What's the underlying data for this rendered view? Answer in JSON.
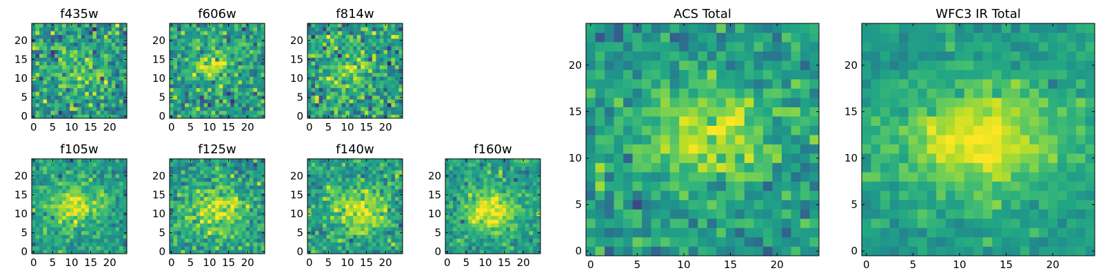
{
  "chart_data": [
    {
      "type": "heatmap",
      "title": "f435w",
      "colormap": "viridis",
      "xlim": [
        0,
        25
      ],
      "ylim": [
        0,
        25
      ],
      "xticks": [
        "0",
        "5",
        "10",
        "15",
        "20"
      ],
      "yticks": [
        "0",
        "5",
        "10",
        "15",
        "20"
      ],
      "blob": {
        "cx": 12,
        "cy": 12,
        "sx": 4.5,
        "sy": 3.5,
        "amp": 0.22
      },
      "noise": 0.45,
      "seed": 11
    },
    {
      "type": "heatmap",
      "title": "f606w",
      "colormap": "viridis",
      "xlim": [
        0,
        25
      ],
      "ylim": [
        0,
        25
      ],
      "xticks": [
        "0",
        "5",
        "10",
        "15",
        "20"
      ],
      "yticks": [
        "0",
        "5",
        "10",
        "15",
        "20"
      ],
      "blob": {
        "cx": 11,
        "cy": 13,
        "sx": 4,
        "sy": 3,
        "amp": 0.32
      },
      "noise": 0.4,
      "seed": 22
    },
    {
      "type": "heatmap",
      "title": "f814w",
      "colormap": "viridis",
      "xlim": [
        0,
        25
      ],
      "ylim": [
        0,
        25
      ],
      "xticks": [
        "0",
        "5",
        "10",
        "15",
        "20"
      ],
      "yticks": [
        "0",
        "5",
        "10",
        "15",
        "20"
      ],
      "blob": {
        "cx": 11,
        "cy": 12,
        "sx": 5,
        "sy": 4,
        "amp": 0.25
      },
      "noise": 0.45,
      "seed": 33
    },
    {
      "type": "heatmap",
      "title": "f105w",
      "colormap": "viridis",
      "xlim": [
        0,
        25
      ],
      "ylim": [
        0,
        25
      ],
      "xticks": [
        "0",
        "5",
        "10",
        "15",
        "20"
      ],
      "yticks": [
        "0",
        "5",
        "10",
        "15",
        "20"
      ],
      "blob": {
        "cx": 11,
        "cy": 12,
        "sx": 5,
        "sy": 4,
        "amp": 0.38
      },
      "noise": 0.32,
      "seed": 44
    },
    {
      "type": "heatmap",
      "title": "f125w",
      "colormap": "viridis",
      "xlim": [
        0,
        25
      ],
      "ylim": [
        0,
        25
      ],
      "xticks": [
        "0",
        "5",
        "10",
        "15",
        "20"
      ],
      "yticks": [
        "0",
        "5",
        "10",
        "15",
        "20"
      ],
      "blob": {
        "cx": 12,
        "cy": 11,
        "sx": 5,
        "sy": 4.5,
        "amp": 0.38
      },
      "noise": 0.35,
      "seed": 55
    },
    {
      "type": "heatmap",
      "title": "f140w",
      "colormap": "viridis",
      "xlim": [
        0,
        25
      ],
      "ylim": [
        0,
        25
      ],
      "xticks": [
        "0",
        "5",
        "10",
        "15",
        "20"
      ],
      "yticks": [
        "0",
        "5",
        "10",
        "15",
        "20"
      ],
      "blob": {
        "cx": 13,
        "cy": 11,
        "sx": 5,
        "sy": 4,
        "amp": 0.4
      },
      "noise": 0.33,
      "seed": 66
    },
    {
      "type": "heatmap",
      "title": "f160w",
      "colormap": "viridis",
      "xlim": [
        0,
        25
      ],
      "ylim": [
        0,
        25
      ],
      "xticks": [
        "0",
        "5",
        "10",
        "15",
        "20"
      ],
      "yticks": [
        "0",
        "5",
        "10",
        "15",
        "20"
      ],
      "blob": {
        "cx": 12,
        "cy": 11,
        "sx": 5,
        "sy": 4,
        "amp": 0.42
      },
      "noise": 0.3,
      "seed": 77
    },
    {
      "type": "heatmap",
      "title": "ACS Total",
      "colormap": "viridis",
      "xlim": [
        0,
        25
      ],
      "ylim": [
        0,
        25
      ],
      "xticks": [
        "0",
        "5",
        "10",
        "15",
        "20"
      ],
      "yticks": [
        "0",
        "5",
        "10",
        "15",
        "20"
      ],
      "blob": {
        "cx": 12,
        "cy": 12.5,
        "sx": 5,
        "sy": 3.5,
        "amp": 0.35
      },
      "noise": 0.3,
      "seed": 88
    },
    {
      "type": "heatmap",
      "title": "WFC3 IR Total",
      "colormap": "viridis",
      "xlim": [
        0,
        25
      ],
      "ylim": [
        0,
        25
      ],
      "xticks": [
        "0",
        "5",
        "10",
        "15",
        "20"
      ],
      "yticks": [
        "0",
        "5",
        "10",
        "15",
        "20"
      ],
      "blob": {
        "cx": 12,
        "cy": 12,
        "sx": 6,
        "sy": 4,
        "amp": 0.45
      },
      "noise": 0.18,
      "seed": 99
    }
  ]
}
